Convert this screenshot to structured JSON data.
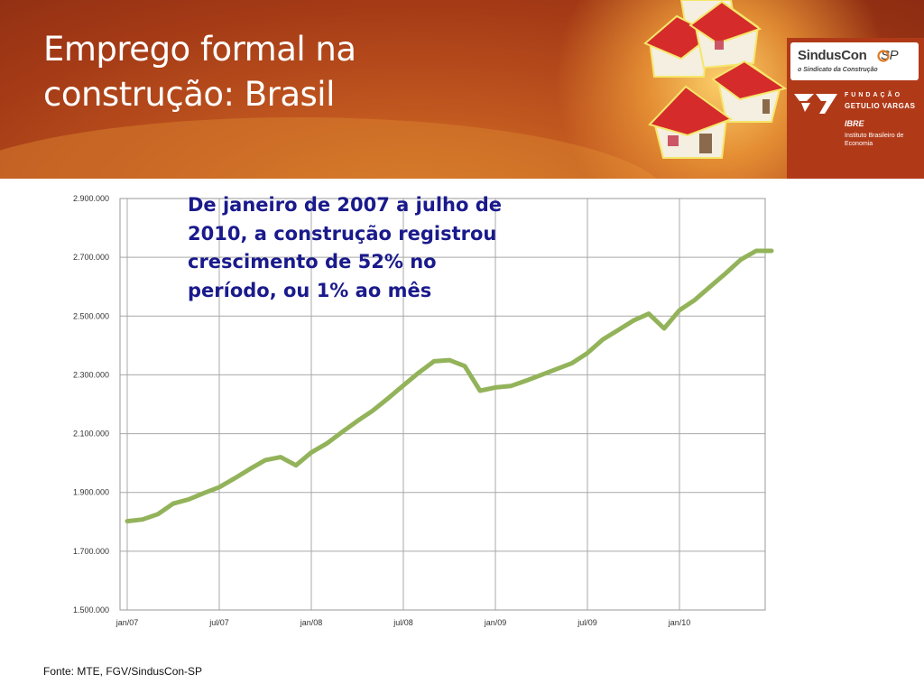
{
  "slide": {
    "title_line1": "Emprego formal na",
    "title_line2": "construção: Brasil",
    "annotation": "De janeiro de 2007 a julho de 2010, a construção registrou crescimento de 52% no período, ou 1% ao mês",
    "source": "Fonte: MTE, FGV/SindusCon-SP"
  },
  "logos": {
    "sinduscon_name": "SindusCon",
    "sinduscon_sp": "SP",
    "sinduscon_tagline": "o Sindicato da Construção",
    "fgv_fundacao": "FUNDAÇÃO",
    "fgv_name": "GETULIO VARGAS",
    "ibre": "IBRE",
    "ibre_sub": "Instituto Brasileiro de Economia"
  },
  "chart_data": {
    "type": "line",
    "title": "",
    "xlabel": "",
    "ylabel": "",
    "ylim": [
      1500000,
      2900000
    ],
    "y_ticks": [
      "1.500.000",
      "1.700.000",
      "1.900.000",
      "2.100.000",
      "2.300.000",
      "2.500.000",
      "2.700.000",
      "2.900.000"
    ],
    "x_ticks": [
      "jan/07",
      "jul/07",
      "jan/08",
      "jul/08",
      "jan/09",
      "jul/09",
      "jan/10"
    ],
    "grid": true,
    "line_color": "#93b35a",
    "series": [
      {
        "name": "",
        "x": [
          "jan/07",
          "fev/07",
          "mar/07",
          "abr/07",
          "mai/07",
          "jun/07",
          "jul/07",
          "ago/07",
          "set/07",
          "out/07",
          "nov/07",
          "dez/07",
          "jan/08",
          "fev/08",
          "mar/08",
          "abr/08",
          "mai/08",
          "jun/08",
          "jul/08",
          "ago/08",
          "set/08",
          "out/08",
          "nov/08",
          "dez/08",
          "jan/09",
          "fev/09",
          "mar/09",
          "abr/09",
          "mai/09",
          "jun/09",
          "jul/09",
          "ago/09",
          "set/09",
          "out/09",
          "nov/09",
          "dez/09",
          "jan/10",
          "fev/10",
          "mar/10",
          "abr/10",
          "mai/10",
          "jun/10",
          "jul/10"
        ],
        "values": [
          1802000,
          1808000,
          1826000,
          1862000,
          1876000,
          1898000,
          1918000,
          1948000,
          1980000,
          2010000,
          2020000,
          1992000,
          2036000,
          2066000,
          2105000,
          2143000,
          2178000,
          2220000,
          2264000,
          2307000,
          2346000,
          2350000,
          2330000,
          2246000,
          2257000,
          2262000,
          2280000,
          2300000,
          2320000,
          2340000,
          2374000,
          2420000,
          2452000,
          2485000,
          2508000,
          2458000,
          2520000,
          2555000,
          2600000,
          2645000,
          2692000,
          2722000,
          2722000
        ]
      }
    ]
  }
}
